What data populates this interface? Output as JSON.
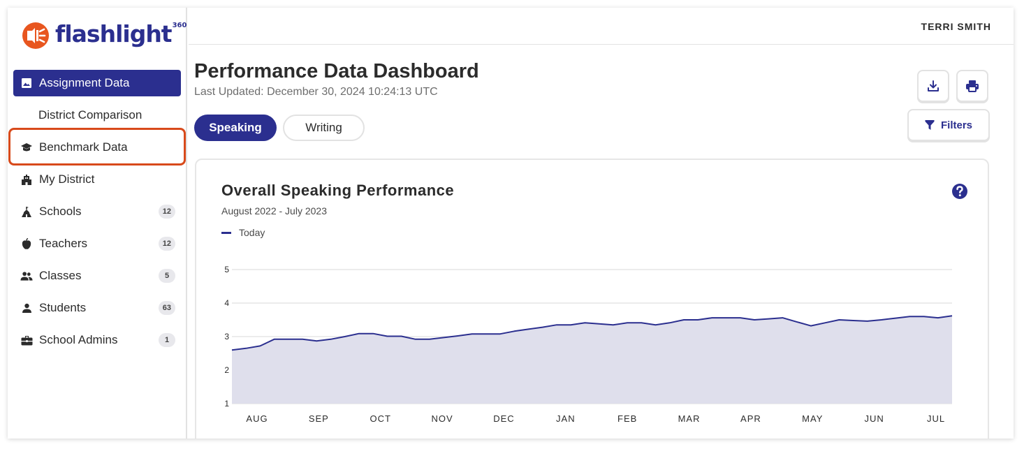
{
  "brand": {
    "name": "flashlight",
    "sup": "360",
    "color": "#2b2f8f",
    "accent": "#e8561f"
  },
  "user": {
    "name": "TERRI SMITH"
  },
  "sidebar": {
    "items": [
      {
        "label": "Assignment Data",
        "icon": "image-icon",
        "active": true
      },
      {
        "label": "District Comparison",
        "icon": "",
        "sub": true
      },
      {
        "label": "Benchmark Data",
        "icon": "graduation-cap-icon",
        "highlighted": true
      },
      {
        "label": "My District",
        "icon": "building-icon"
      },
      {
        "label": "Schools",
        "icon": "school-icon",
        "badge": "12"
      },
      {
        "label": "Teachers",
        "icon": "apple-icon",
        "badge": "12"
      },
      {
        "label": "Classes",
        "icon": "users-icon",
        "badge": "5"
      },
      {
        "label": "Students",
        "icon": "user-icon",
        "badge": "63"
      },
      {
        "label": "School Admins",
        "icon": "briefcase-icon",
        "badge": "1"
      }
    ]
  },
  "header": {
    "title": "Performance Data Dashboard",
    "last_updated": "Last Updated: December 30, 2024 10:24:13 UTC"
  },
  "tabs": {
    "speaking": "Speaking",
    "writing": "Writing"
  },
  "actions": {
    "download": "download-icon",
    "print": "print-icon",
    "filters_label": "Filters"
  },
  "card": {
    "title": "Overall Speaking Performance",
    "subtitle": "August 2022 - July 2023",
    "legend_label": "Today"
  },
  "chart_data": {
    "type": "area",
    "title": "Overall Speaking Performance",
    "subtitle": "August 2022 - July 2023",
    "ylim": [
      1,
      5
    ],
    "yticks": [
      1,
      2,
      3,
      4,
      5
    ],
    "month_labels": [
      "AUG",
      "SEP",
      "OCT",
      "NOV",
      "DEC",
      "JAN",
      "FEB",
      "MAR",
      "APR",
      "MAY",
      "JUN",
      "JUL"
    ],
    "grid": true,
    "series": [
      {
        "name": "Today",
        "color": "#2b2f8f",
        "fill": "#dfdfec",
        "values": [
          2.6,
          2.65,
          2.72,
          2.92,
          2.92,
          2.92,
          2.87,
          2.92,
          3.0,
          3.09,
          3.09,
          3.01,
          3.01,
          2.92,
          2.92,
          2.97,
          3.02,
          3.08,
          3.08,
          3.08,
          3.16,
          3.22,
          3.28,
          3.35,
          3.35,
          3.41,
          3.38,
          3.35,
          3.41,
          3.41,
          3.35,
          3.41,
          3.5,
          3.5,
          3.56,
          3.56,
          3.56,
          3.5,
          3.53,
          3.56,
          3.44,
          3.32,
          3.41,
          3.5,
          3.48,
          3.46,
          3.5,
          3.55,
          3.6,
          3.6,
          3.56,
          3.62
        ]
      }
    ]
  }
}
